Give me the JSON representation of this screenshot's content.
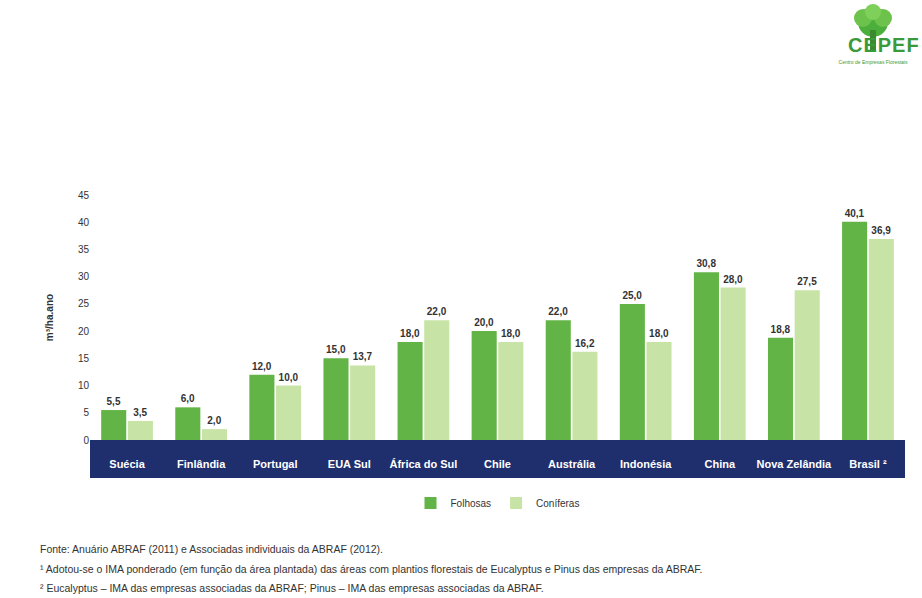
{
  "chart_data": {
    "type": "bar",
    "y_label": "m³/ha.ano",
    "categories": [
      "Suécia",
      "Finlândia",
      "Portugal",
      "EUA Sul",
      "África do Sul",
      "Chile",
      "Austrália",
      "Indonésia",
      "China",
      "Nova Zelândia",
      "Brasil ²"
    ],
    "series": [
      {
        "name": "Folhosas",
        "color": "#62b446",
        "values": [
          5.5,
          6.0,
          12.0,
          15.0,
          18.0,
          20.0,
          22.0,
          25.0,
          30.8,
          18.8,
          40.1
        ],
        "value_labels": [
          "5,5",
          "6,0",
          "12,0",
          "15,0",
          "18,0",
          "20,0",
          "22,0",
          "25,0",
          "30,8",
          "18,8",
          "40,1"
        ]
      },
      {
        "name": "Coníferas",
        "color": "#c8e3a6",
        "values": [
          3.5,
          2.0,
          10.0,
          13.7,
          22.0,
          18.0,
          16.2,
          18.0,
          28.0,
          27.5,
          36.9
        ],
        "value_labels": [
          "3,5",
          "2,0",
          "10,0",
          "13,7",
          "22,0",
          "18,0",
          "16,2",
          "18,0",
          "28,0",
          "27,5",
          "36,9"
        ]
      }
    ],
    "ylim": [
      0,
      45
    ],
    "yticks": [
      0,
      5,
      10,
      15,
      20,
      25,
      30,
      35,
      40,
      45
    ],
    "grid": false,
    "legend": "bottom",
    "data_labels": true,
    "annotations": [
      "Fonte: Anuário ABRAF (2011) e Associadas individuais da ABRAF (2012).",
      "¹ Adotou-se o IMA ponderado (em função da área plantada) das áreas com plantios florestais de Eucalyptus e Pinus das empresas da ABRAF.",
      "² Eucalyptus – IMA das empresas associadas da ABRAF; Pinus – IMA das empresas associadas da ABRAF."
    ],
    "logo": {
      "title": "CEPEF",
      "subtitle": "Centro de Empresas Florestais"
    }
  }
}
